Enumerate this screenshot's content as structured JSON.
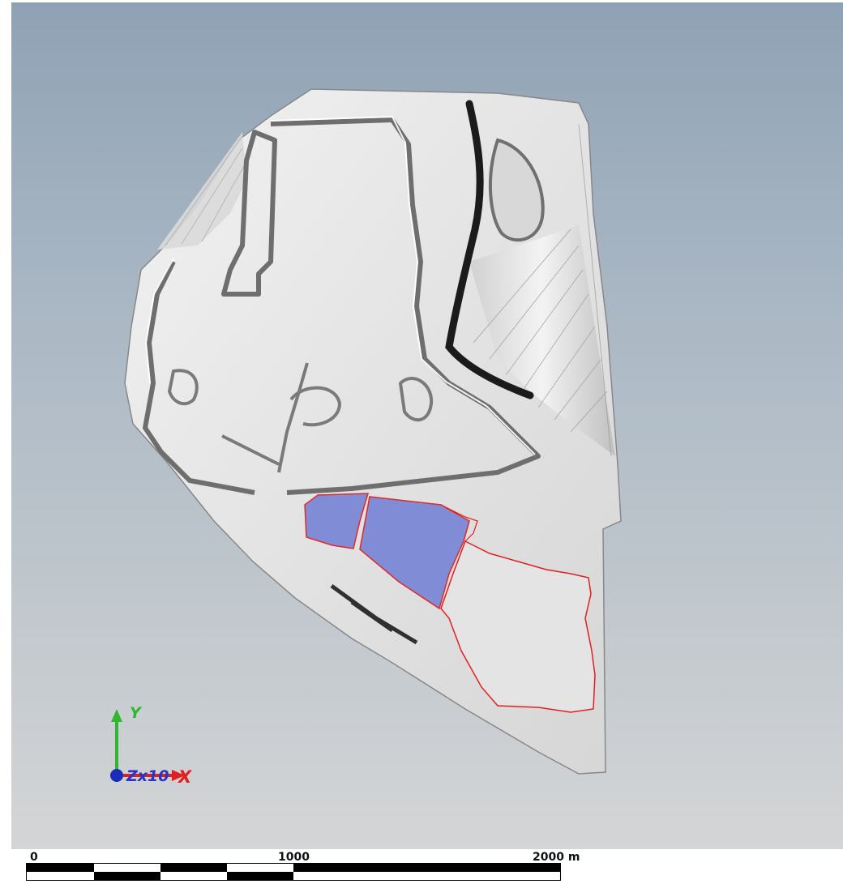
{
  "axes": {
    "y_label": "Y",
    "x_label": "X",
    "zoom_label": "Zx10"
  },
  "scale_bar": {
    "label_start": "0",
    "label_mid": "1000",
    "label_end": "2000 m"
  },
  "colors": {
    "background_top": "#8fa2b4",
    "background_bottom": "#d4d5d6",
    "terrain": "#e6e6e6",
    "selected_region_fill": "#7b88d6",
    "region_outline": "#e02020",
    "y_axis": "#2fb82f",
    "x_axis": "#e02020",
    "z_axis": "#1a2cb8"
  }
}
